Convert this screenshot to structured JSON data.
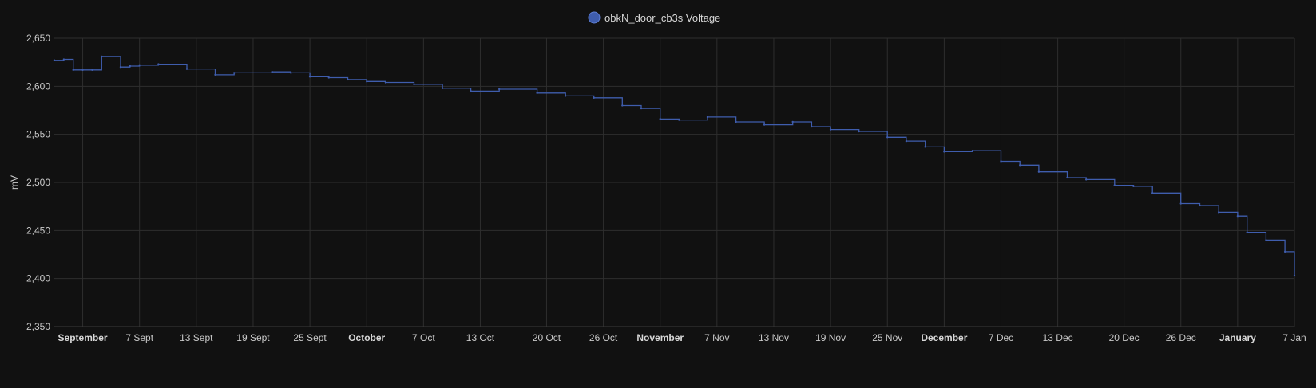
{
  "chart_data": {
    "type": "line",
    "step": true,
    "title": "",
    "xlabel": "",
    "ylabel": "mV",
    "ylim": [
      2350,
      2650
    ],
    "yticks": [
      "2,650",
      "2,600",
      "2,550",
      "2,500",
      "2,450",
      "2,400",
      "2,350"
    ],
    "ytick_values": [
      2650,
      2600,
      2550,
      2500,
      2450,
      2400,
      2350
    ],
    "xlim": [
      "2023-08-29",
      "2024-01-07"
    ],
    "xticks": [
      {
        "label": "September",
        "date": "2023-09-01",
        "major": true
      },
      {
        "label": "7 Sept",
        "date": "2023-09-07",
        "major": false
      },
      {
        "label": "13 Sept",
        "date": "2023-09-13",
        "major": false
      },
      {
        "label": "19 Sept",
        "date": "2023-09-19",
        "major": false
      },
      {
        "label": "25 Sept",
        "date": "2023-09-25",
        "major": false
      },
      {
        "label": "October",
        "date": "2023-10-01",
        "major": true
      },
      {
        "label": "7 Oct",
        "date": "2023-10-07",
        "major": false
      },
      {
        "label": "13 Oct",
        "date": "2023-10-13",
        "major": false
      },
      {
        "label": "20 Oct",
        "date": "2023-10-20",
        "major": false
      },
      {
        "label": "26 Oct",
        "date": "2023-10-26",
        "major": false
      },
      {
        "label": "November",
        "date": "2023-11-01",
        "major": true
      },
      {
        "label": "7 Nov",
        "date": "2023-11-07",
        "major": false
      },
      {
        "label": "13 Nov",
        "date": "2023-11-13",
        "major": false
      },
      {
        "label": "19 Nov",
        "date": "2023-11-19",
        "major": false
      },
      {
        "label": "25 Nov",
        "date": "2023-11-25",
        "major": false
      },
      {
        "label": "December",
        "date": "2023-12-01",
        "major": true
      },
      {
        "label": "7 Dec",
        "date": "2023-12-07",
        "major": false
      },
      {
        "label": "13 Dec",
        "date": "2023-12-13",
        "major": false
      },
      {
        "label": "20 Dec",
        "date": "2023-12-20",
        "major": false
      },
      {
        "label": "26 Dec",
        "date": "2023-12-26",
        "major": false
      },
      {
        "label": "January",
        "date": "2024-01-01",
        "major": true
      },
      {
        "label": "7 Jan",
        "date": "2024-01-07",
        "major": false
      }
    ],
    "grid": true,
    "legend": "top-center",
    "series": [
      {
        "name": "obkN_door_cb3s Voltage",
        "color": "#3f5dad",
        "x": [
          "2023-08-29",
          "2023-08-30",
          "2023-08-31",
          "2023-09-01",
          "2023-09-02",
          "2023-09-03",
          "2023-09-05",
          "2023-09-06",
          "2023-09-07",
          "2023-09-09",
          "2023-09-12",
          "2023-09-15",
          "2023-09-17",
          "2023-09-21",
          "2023-09-23",
          "2023-09-25",
          "2023-09-27",
          "2023-09-29",
          "2023-10-01",
          "2023-10-03",
          "2023-10-06",
          "2023-10-09",
          "2023-10-12",
          "2023-10-15",
          "2023-10-19",
          "2023-10-22",
          "2023-10-25",
          "2023-10-28",
          "2023-10-30",
          "2023-11-01",
          "2023-11-03",
          "2023-11-06",
          "2023-11-09",
          "2023-11-12",
          "2023-11-15",
          "2023-11-17",
          "2023-11-19",
          "2023-11-22",
          "2023-11-25",
          "2023-11-27",
          "2023-11-29",
          "2023-12-01",
          "2023-12-04",
          "2023-12-07",
          "2023-12-09",
          "2023-12-11",
          "2023-12-14",
          "2023-12-16",
          "2023-12-19",
          "2023-12-21",
          "2023-12-23",
          "2023-12-26",
          "2023-12-28",
          "2023-12-30",
          "2024-01-01",
          "2024-01-02",
          "2024-01-04",
          "2024-01-06",
          "2024-01-07"
        ],
        "values": [
          2627,
          2628,
          2617,
          2617,
          2617,
          2631,
          2620,
          2621,
          2622,
          2623,
          2618,
          2612,
          2614,
          2615,
          2614,
          2610,
          2609,
          2607,
          2605,
          2604,
          2602,
          2598,
          2595,
          2597,
          2593,
          2590,
          2588,
          2580,
          2577,
          2566,
          2565,
          2568,
          2563,
          2560,
          2563,
          2558,
          2555,
          2553,
          2547,
          2543,
          2537,
          2532,
          2533,
          2522,
          2518,
          2511,
          2505,
          2503,
          2497,
          2496,
          2489,
          2478,
          2476,
          2469,
          2465,
          2448,
          2440,
          2428,
          2403
        ]
      }
    ]
  }
}
